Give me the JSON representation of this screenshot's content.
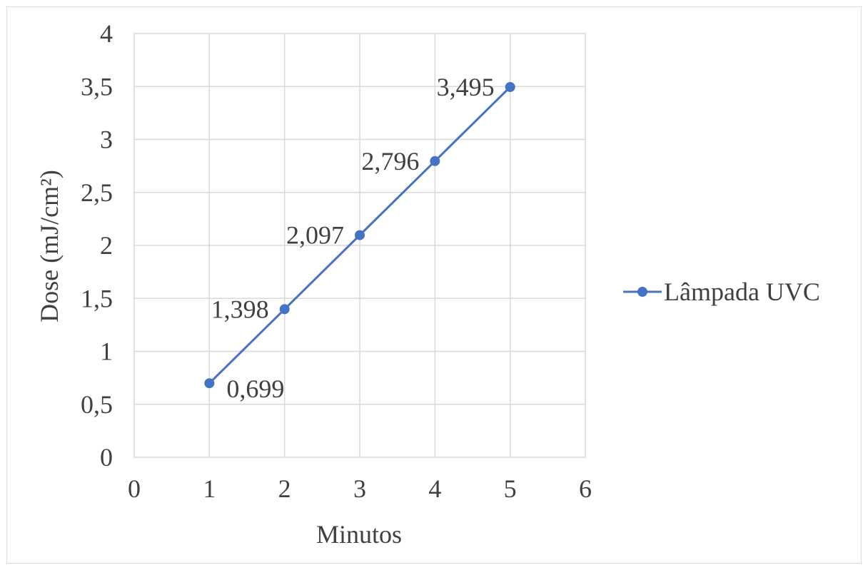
{
  "chart_data": {
    "type": "scatter",
    "title": "",
    "xlabel": "Minutos",
    "ylabel": "Dose (mJ/cm²)",
    "xlim": [
      0,
      6
    ],
    "ylim": [
      0,
      4
    ],
    "xticks": [
      0,
      1,
      2,
      3,
      4,
      5,
      6
    ],
    "yticks": [
      0,
      0.5,
      1,
      1.5,
      2,
      2.5,
      3,
      3.5,
      4
    ],
    "x_tick_labels": [
      "0",
      "1",
      "2",
      "3",
      "4",
      "5",
      "6"
    ],
    "y_tick_labels": [
      "0",
      "0,5",
      "1",
      "1,5",
      "2",
      "2,5",
      "3",
      "3,5",
      "4"
    ],
    "grid": true,
    "legend_position": "right",
    "series": [
      {
        "name": "Lâmpada UVC",
        "color": "#4472c4",
        "marker": "circle",
        "line": "straight",
        "x": [
          1,
          2,
          3,
          4,
          5
        ],
        "y": [
          0.699,
          1.398,
          2.097,
          2.796,
          3.495
        ],
        "labels": [
          "0,699",
          "1,398",
          "2,097",
          "2,796",
          "3,495"
        ],
        "label_positions": [
          "below-right",
          "left",
          "left",
          "left",
          "left"
        ]
      }
    ]
  },
  "colors": {
    "series": "#4472c4",
    "grid": "#d9d9d9",
    "text": "#404040",
    "frame": "#d9d9d9"
  }
}
